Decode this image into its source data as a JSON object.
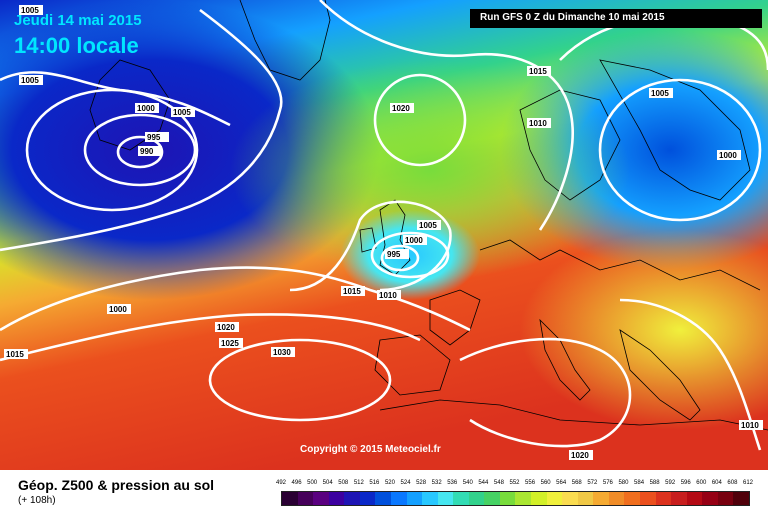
{
  "header": {
    "date": "Jeudi 14 mai 2015",
    "local_time": "14:00 locale",
    "run": "Run GFS 0 Z du Dimanche 10 mai 2015"
  },
  "copyright": "Copyright © 2015 Meteociel.fr",
  "footer": {
    "title": "Géop. Z500 & pression au sol",
    "forecast_hour": "(+ 108h)"
  },
  "legend": {
    "ticks": [
      "492",
      "496",
      "500",
      "504",
      "508",
      "512",
      "516",
      "520",
      "524",
      "528",
      "532",
      "536",
      "540",
      "544",
      "548",
      "552",
      "556",
      "560",
      "564",
      "568",
      "572",
      "576",
      "580",
      "584",
      "588",
      "592",
      "596",
      "600",
      "604",
      "608",
      "612"
    ],
    "colors": [
      "#2a0033",
      "#46005a",
      "#5a0080",
      "#3c00a0",
      "#1e14b4",
      "#0a28c8",
      "#0050dc",
      "#0a78ff",
      "#14a0ff",
      "#28c8ff",
      "#46e6f0",
      "#32dcb4",
      "#32d28c",
      "#46d264",
      "#78dc3c",
      "#aae632",
      "#d2f028",
      "#f0f03c",
      "#fadc50",
      "#f0c846",
      "#f5aa32",
      "#f08c28",
      "#f06e1e",
      "#eb501e",
      "#dc321e",
      "#c81e1e",
      "#b40a14",
      "#960014",
      "#78000f",
      "#50000a"
    ]
  },
  "isobars": [
    {
      "value": "1005"
    },
    {
      "value": "1000"
    },
    {
      "value": "1005"
    },
    {
      "value": "995"
    },
    {
      "value": "990"
    },
    {
      "value": "1005"
    },
    {
      "value": "1020"
    },
    {
      "value": "1015"
    },
    {
      "value": "1010"
    },
    {
      "value": "1005"
    },
    {
      "value": "1000"
    },
    {
      "value": "1005"
    },
    {
      "value": "1000"
    },
    {
      "value": "995"
    },
    {
      "value": "1015"
    },
    {
      "value": "1010"
    },
    {
      "value": "1000"
    },
    {
      "value": "1020"
    },
    {
      "value": "1025"
    },
    {
      "value": "1030"
    },
    {
      "value": "1015"
    },
    {
      "value": "1020"
    },
    {
      "value": "1010"
    }
  ]
}
